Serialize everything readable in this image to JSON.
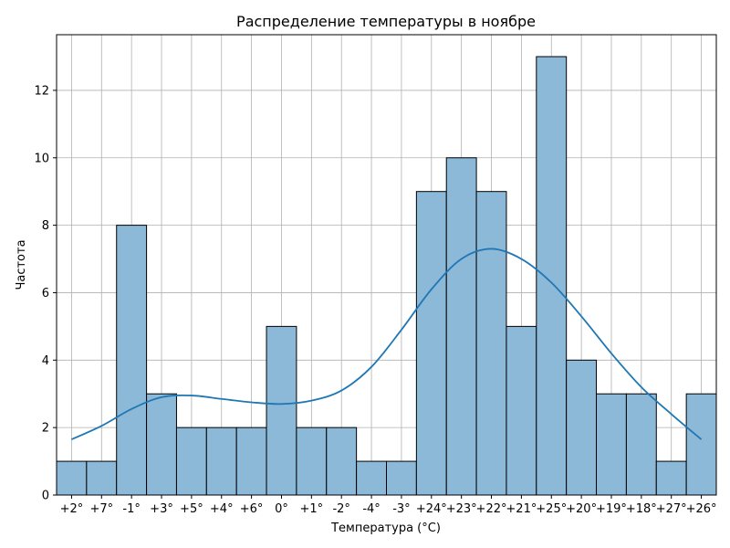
{
  "chart_data": {
    "type": "bar",
    "title": "Распределение температуры в ноябре",
    "xlabel": "Температура (°C)",
    "ylabel": "Частота",
    "categories": [
      "+2°",
      "+7°",
      "-1°",
      "+3°",
      "+5°",
      "+4°",
      "+6°",
      "0°",
      "+1°",
      "-2°",
      "-4°",
      "-3°",
      "+24°",
      "+23°",
      "+22°",
      "+21°",
      "+25°",
      "+20°",
      "+19°",
      "+18°",
      "+27°",
      "+26°"
    ],
    "values": [
      1,
      1,
      8,
      3,
      2,
      2,
      2,
      5,
      2,
      2,
      1,
      1,
      9,
      10,
      9,
      5,
      13,
      4,
      3,
      3,
      1,
      3
    ],
    "ylim": [
      0,
      13.65
    ],
    "yticks": [
      0,
      2,
      4,
      6,
      8,
      10,
      12
    ],
    "grid": true,
    "bar_color": "#8db9d9",
    "bar_edge_color": "#000000",
    "kde_color": "#1f77b4",
    "kde_curve": [
      [
        0,
        1.65
      ],
      [
        1,
        2.05
      ],
      [
        2,
        2.55
      ],
      [
        3,
        2.9
      ],
      [
        4,
        2.95
      ],
      [
        5,
        2.85
      ],
      [
        6,
        2.75
      ],
      [
        7,
        2.7
      ],
      [
        8,
        2.8
      ],
      [
        9,
        3.1
      ],
      [
        10,
        3.8
      ],
      [
        11,
        4.9
      ],
      [
        12,
        6.1
      ],
      [
        13,
        7.0
      ],
      [
        14,
        7.3
      ],
      [
        15,
        7.0
      ],
      [
        16,
        6.3
      ],
      [
        17,
        5.3
      ],
      [
        18,
        4.2
      ],
      [
        19,
        3.2
      ],
      [
        20,
        2.4
      ],
      [
        21,
        1.65
      ]
    ]
  }
}
